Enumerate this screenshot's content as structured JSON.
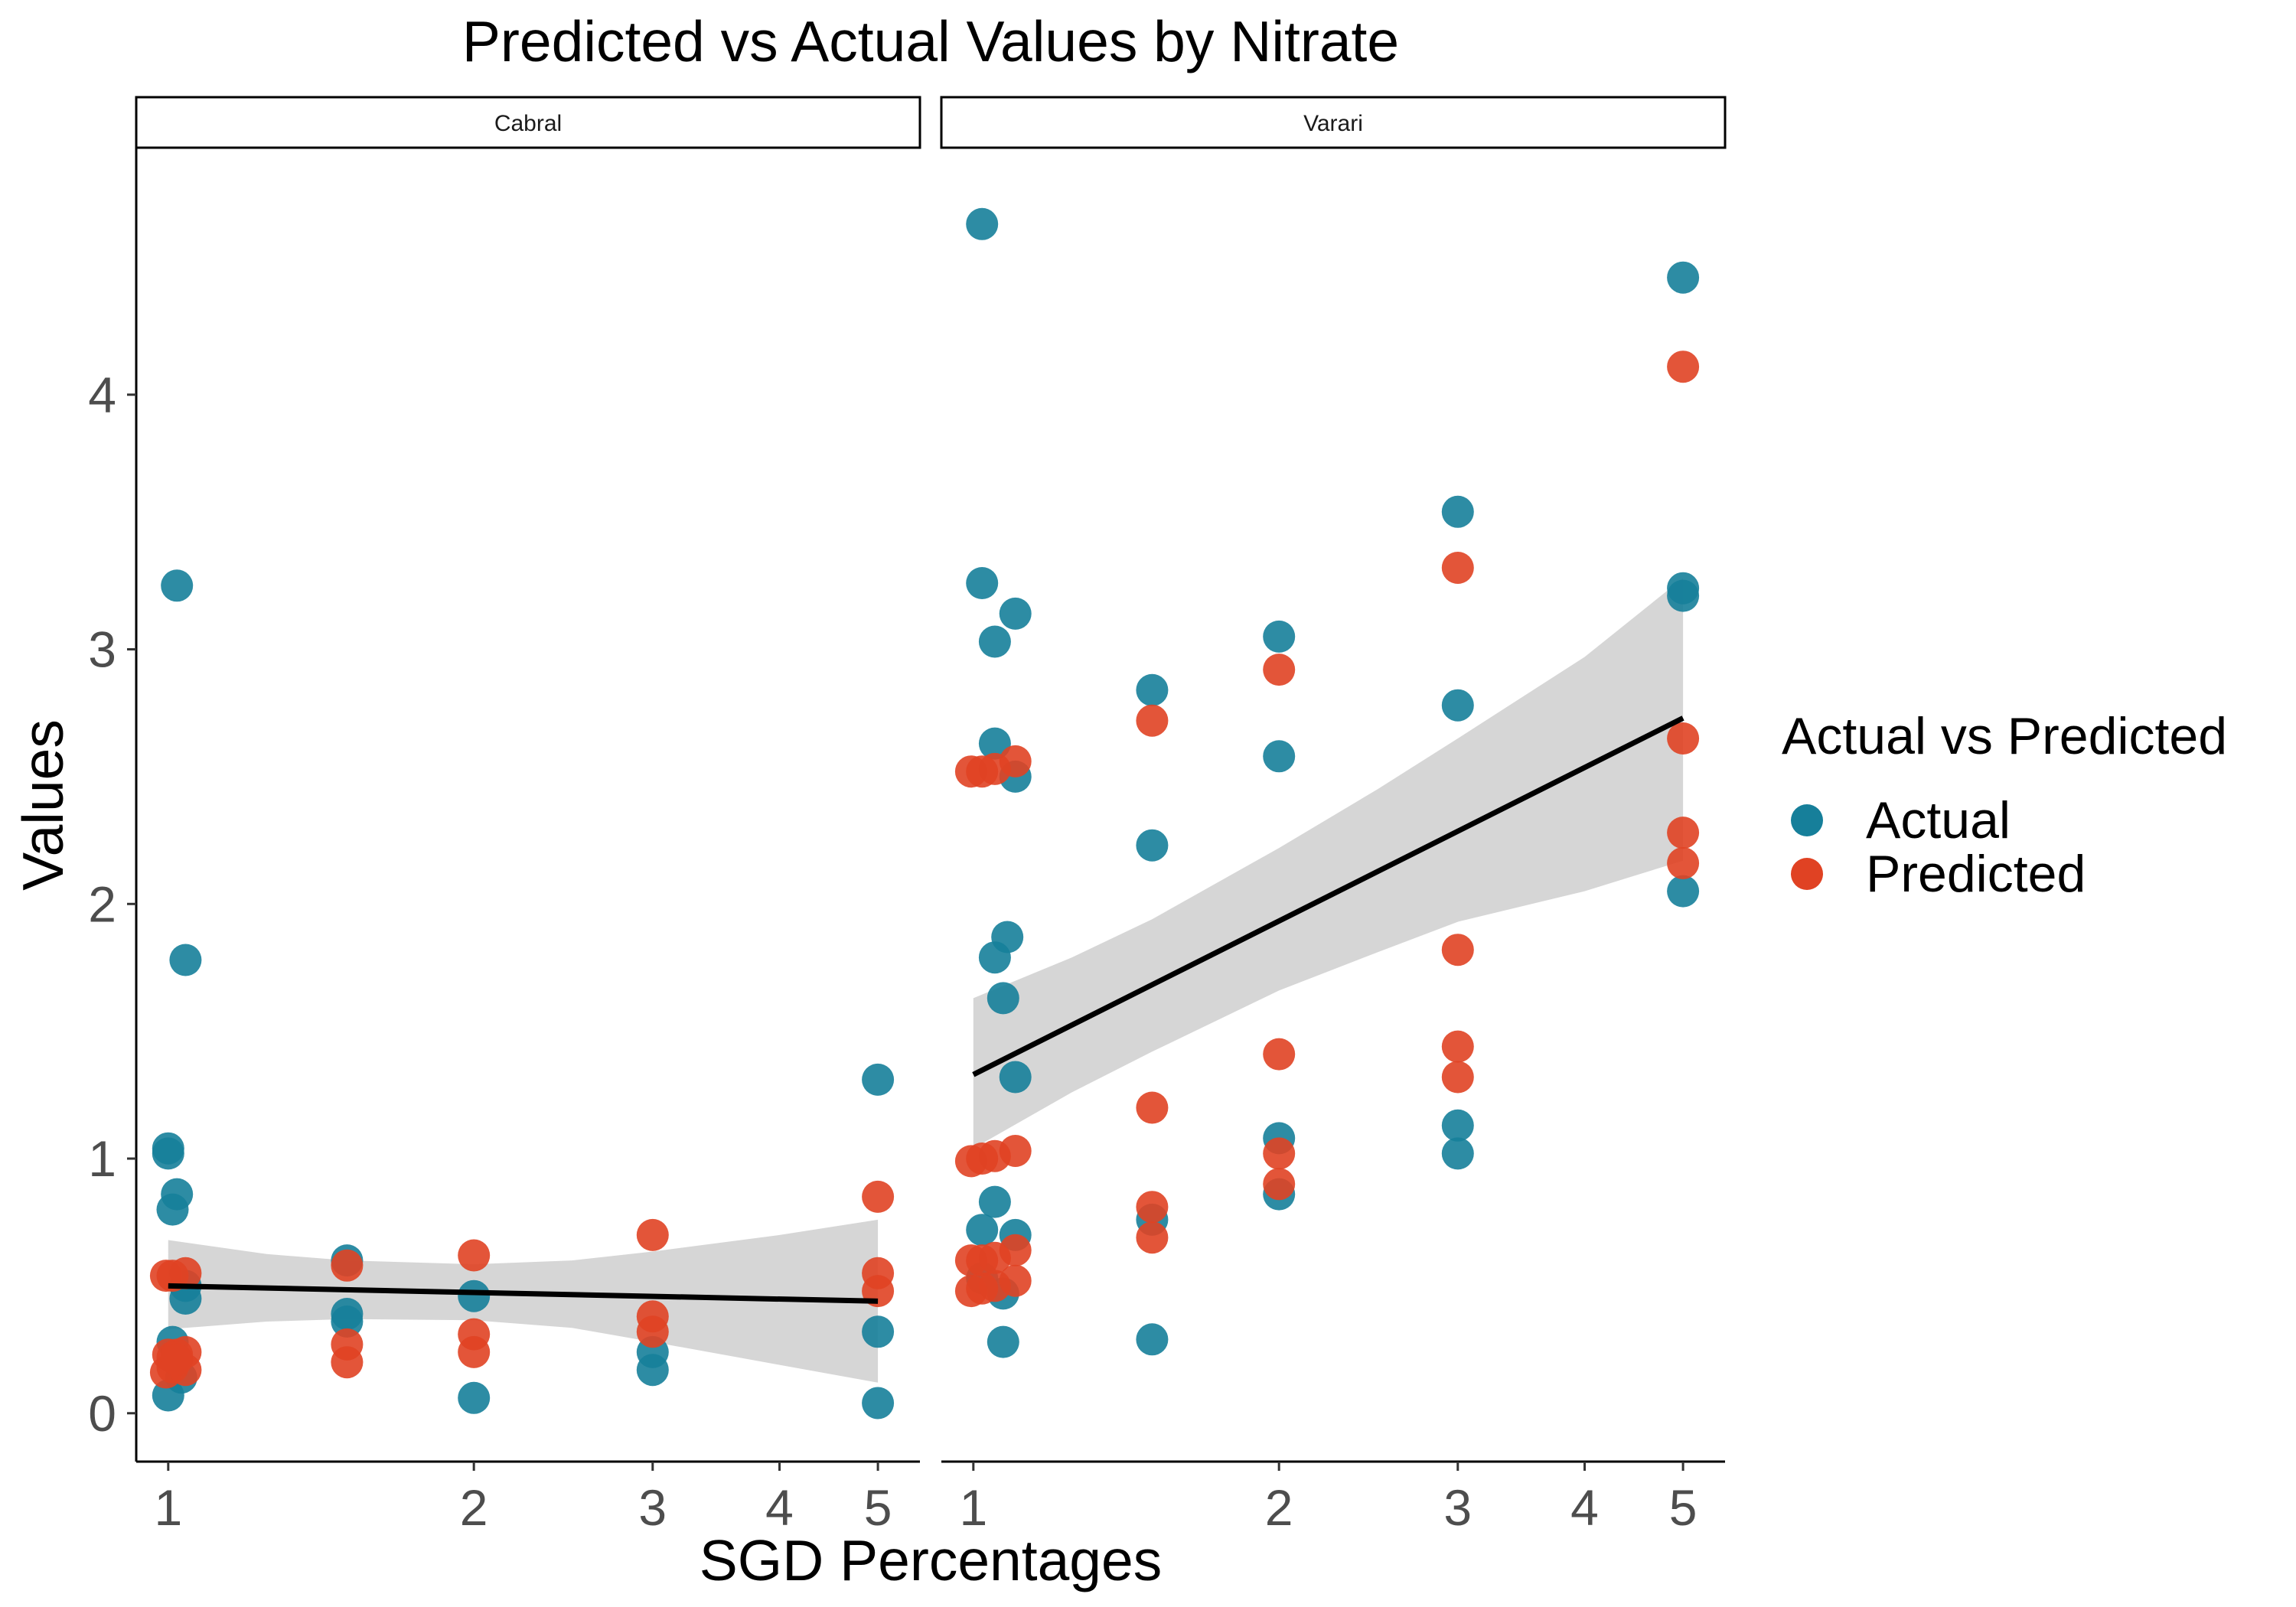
{
  "chart_data": {
    "type": "scatter",
    "title": "Predicted vs Actual Values by Nitrate",
    "xlabel": "SGD Percentages",
    "ylabel": "Values",
    "x_scale": "log",
    "xlim": [
      0.93,
      5.5
    ],
    "ylim": [
      -0.19,
      4.97
    ],
    "x_ticks": [
      1,
      2,
      3,
      4,
      5
    ],
    "y_ticks": [
      0,
      1,
      2,
      3,
      4
    ],
    "grid": false,
    "legend": {
      "title": "Actual vs Predicted",
      "position": "right",
      "entries": [
        {
          "label": "Actual",
          "color": "#167f9a"
        },
        {
          "label": "Predicted",
          "color": "#e04223"
        }
      ]
    },
    "point_alpha": 0.9,
    "fit_line_color": "#000000",
    "ci_band_color": "#d6d6d6",
    "panels": [
      {
        "label": "Cabral",
        "series": [
          {
            "name": "Actual",
            "color": "#167f9a",
            "points": [
              [
                1.02,
                3.25
              ],
              [
                1.04,
                1.78
              ],
              [
                1.0,
                1.04
              ],
              [
                1.0,
                1.02
              ],
              [
                1.02,
                0.86
              ],
              [
                1.01,
                0.8
              ],
              [
                1.04,
                0.5
              ],
              [
                1.04,
                0.45
              ],
              [
                1.01,
                0.28
              ],
              [
                1.03,
                0.14
              ],
              [
                1.0,
                0.07
              ],
              [
                1.5,
                0.6
              ],
              [
                1.5,
                0.39
              ],
              [
                1.5,
                0.36
              ],
              [
                2.0,
                0.46
              ],
              [
                2.0,
                0.06
              ],
              [
                3.0,
                0.24
              ],
              [
                3.0,
                0.17
              ],
              [
                5.0,
                1.31
              ],
              [
                5.0,
                0.32
              ],
              [
                5.0,
                0.04
              ]
            ]
          },
          {
            "name": "Predicted",
            "color": "#e04223",
            "points": [
              [
                0.995,
                0.54
              ],
              [
                1.01,
                0.54
              ],
              [
                1.04,
                0.55
              ],
              [
                1.0,
                0.23
              ],
              [
                1.01,
                0.22
              ],
              [
                1.02,
                0.23
              ],
              [
                1.04,
                0.24
              ],
              [
                0.995,
                0.16
              ],
              [
                1.01,
                0.18
              ],
              [
                1.04,
                0.17
              ],
              [
                1.02,
                0.21
              ],
              [
                1.5,
                0.58
              ],
              [
                1.5,
                0.27
              ],
              [
                1.5,
                0.2
              ],
              [
                2.0,
                0.62
              ],
              [
                2.0,
                0.31
              ],
              [
                2.0,
                0.24
              ],
              [
                3.0,
                0.7
              ],
              [
                3.0,
                0.38
              ],
              [
                3.0,
                0.32
              ],
              [
                5.0,
                0.85
              ],
              [
                5.0,
                0.55
              ],
              [
                5.0,
                0.48
              ]
            ]
          }
        ],
        "fit": {
          "x": [
            1,
            5
          ],
          "y": [
            0.5,
            0.44
          ]
        },
        "ci_band": {
          "x": [
            1.0,
            1.25,
            1.5,
            2.0,
            2.5,
            3.0,
            4.0,
            5.0
          ],
          "upper": [
            0.68,
            0.625,
            0.6,
            0.585,
            0.6,
            0.635,
            0.7,
            0.76
          ],
          "lower": [
            0.33,
            0.36,
            0.37,
            0.365,
            0.335,
            0.28,
            0.19,
            0.12
          ]
        }
      },
      {
        "label": "Varari",
        "series": [
          {
            "name": "Actual",
            "color": "#167f9a",
            "points": [
              [
                1.02,
                4.67
              ],
              [
                1.02,
                3.26
              ],
              [
                1.05,
                3.03
              ],
              [
                1.1,
                3.14
              ],
              [
                1.05,
                2.63
              ],
              [
                1.1,
                2.5
              ],
              [
                1.08,
                1.87
              ],
              [
                1.05,
                1.79
              ],
              [
                1.07,
                1.63
              ],
              [
                1.1,
                1.32
              ],
              [
                1.05,
                0.83
              ],
              [
                1.02,
                0.72
              ],
              [
                1.1,
                0.7
              ],
              [
                1.02,
                0.53
              ],
              [
                1.07,
                0.47
              ],
              [
                1.07,
                0.28
              ],
              [
                1.5,
                2.84
              ],
              [
                1.5,
                2.23
              ],
              [
                1.5,
                0.76
              ],
              [
                1.5,
                0.29
              ],
              [
                2.0,
                3.05
              ],
              [
                2.0,
                2.58
              ],
              [
                2.0,
                1.08
              ],
              [
                2.0,
                0.86
              ],
              [
                3.0,
                3.54
              ],
              [
                3.0,
                2.78
              ],
              [
                3.0,
                1.13
              ],
              [
                3.0,
                1.02
              ],
              [
                5.0,
                4.46
              ],
              [
                5.0,
                3.24
              ],
              [
                5.0,
                3.21
              ],
              [
                5.0,
                2.05
              ]
            ]
          },
          {
            "name": "Predicted",
            "color": "#e04223",
            "points": [
              [
                0.995,
                2.52
              ],
              [
                1.02,
                2.52
              ],
              [
                1.05,
                2.53
              ],
              [
                1.1,
                2.56
              ],
              [
                0.995,
                0.99
              ],
              [
                1.02,
                1.0
              ],
              [
                1.05,
                1.01
              ],
              [
                1.1,
                1.03
              ],
              [
                0.995,
                0.6
              ],
              [
                1.02,
                0.6
              ],
              [
                1.05,
                0.61
              ],
              [
                1.1,
                0.64
              ],
              [
                0.995,
                0.48
              ],
              [
                1.02,
                0.49
              ],
              [
                1.05,
                0.5
              ],
              [
                1.1,
                0.52
              ],
              [
                1.5,
                2.72
              ],
              [
                1.5,
                1.2
              ],
              [
                1.5,
                0.81
              ],
              [
                1.5,
                0.69
              ],
              [
                2.0,
                2.92
              ],
              [
                2.0,
                1.41
              ],
              [
                2.0,
                1.02
              ],
              [
                2.0,
                0.9
              ],
              [
                3.0,
                3.32
              ],
              [
                3.0,
                1.82
              ],
              [
                3.0,
                1.44
              ],
              [
                3.0,
                1.32
              ],
              [
                5.0,
                4.11
              ],
              [
                5.0,
                2.65
              ],
              [
                5.0,
                2.28
              ],
              [
                5.0,
                2.16
              ]
            ]
          }
        ],
        "fit": {
          "x": [
            1,
            5
          ],
          "y": [
            1.33,
            2.73
          ]
        },
        "ci_band": {
          "x": [
            1.0,
            1.25,
            1.5,
            2.0,
            2.5,
            3.0,
            4.0,
            5.0
          ],
          "upper": [
            1.63,
            1.79,
            1.94,
            2.22,
            2.45,
            2.65,
            2.97,
            3.28
          ],
          "lower": [
            1.04,
            1.26,
            1.42,
            1.66,
            1.81,
            1.93,
            2.05,
            2.17
          ]
        }
      }
    ]
  }
}
